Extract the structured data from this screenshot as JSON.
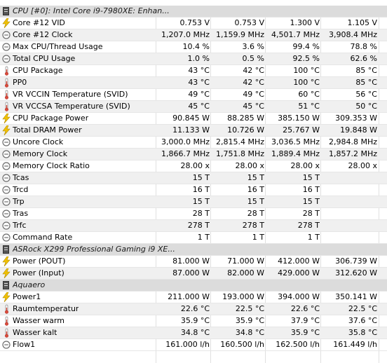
{
  "rows": [
    {
      "kind": "group",
      "label": "CPU [#0]: Intel Core i9-7980XE: Enhan..."
    },
    {
      "kind": "volt",
      "label": "Core #12 VID",
      "cur": "0.753 V",
      "min": "0.753 V",
      "max": "1.300 V",
      "avg": "1.105 V"
    },
    {
      "kind": "clock",
      "label": "Core #12 Clock",
      "cur": "1,207.0 MHz",
      "min": "1,159.9 MHz",
      "max": "4,501.7 MHz",
      "avg": "3,908.4 MHz"
    },
    {
      "kind": "clock",
      "label": "Max CPU/Thread Usage",
      "cur": "10.4 %",
      "min": "3.6 %",
      "max": "99.4 %",
      "avg": "78.8 %"
    },
    {
      "kind": "clock",
      "label": "Total CPU Usage",
      "cur": "1.0 %",
      "min": "0.5 %",
      "max": "92.5 %",
      "avg": "62.6 %"
    },
    {
      "kind": "temp",
      "label": "CPU Package",
      "cur": "43 °C",
      "min": "42 °C",
      "max": "100 °C",
      "avg": "85 °C"
    },
    {
      "kind": "temp",
      "label": "PP0",
      "cur": "43 °C",
      "min": "42 °C",
      "max": "100 °C",
      "avg": "85 °C"
    },
    {
      "kind": "temp",
      "label": "VR VCCIN Temperature (SVID)",
      "cur": "49 °C",
      "min": "49 °C",
      "max": "60 °C",
      "avg": "56 °C"
    },
    {
      "kind": "temp",
      "label": "VR VCCSA Temperature (SVID)",
      "cur": "45 °C",
      "min": "45 °C",
      "max": "51 °C",
      "avg": "50 °C"
    },
    {
      "kind": "volt",
      "label": "CPU Package Power",
      "cur": "90.845 W",
      "min": "88.285 W",
      "max": "385.150 W",
      "avg": "309.353 W"
    },
    {
      "kind": "volt",
      "label": "Total DRAM Power",
      "cur": "11.133 W",
      "min": "10.726 W",
      "max": "25.767 W",
      "avg": "19.848 W"
    },
    {
      "kind": "clock",
      "label": "Uncore Clock",
      "cur": "3,000.0 MHz",
      "min": "2,815.4 MHz",
      "max": "3,036.5 MHz",
      "avg": "2,984.8 MHz"
    },
    {
      "kind": "clock",
      "label": "Memory Clock",
      "cur": "1,866.7 MHz",
      "min": "1,751.8 MHz",
      "max": "1,889.4 MHz",
      "avg": "1,857.2 MHz"
    },
    {
      "kind": "clock",
      "label": "Memory Clock Ratio",
      "cur": "28.00 x",
      "min": "28.00 x",
      "max": "28.00 x",
      "avg": "28.00 x"
    },
    {
      "kind": "clock",
      "label": "Tcas",
      "cur": "15 T",
      "min": "15 T",
      "max": "15 T",
      "avg": ""
    },
    {
      "kind": "clock",
      "label": "Trcd",
      "cur": "16 T",
      "min": "16 T",
      "max": "16 T",
      "avg": ""
    },
    {
      "kind": "clock",
      "label": "Trp",
      "cur": "15 T",
      "min": "15 T",
      "max": "15 T",
      "avg": ""
    },
    {
      "kind": "clock",
      "label": "Tras",
      "cur": "28 T",
      "min": "28 T",
      "max": "28 T",
      "avg": ""
    },
    {
      "kind": "clock",
      "label": "Trfc",
      "cur": "278 T",
      "min": "278 T",
      "max": "278 T",
      "avg": ""
    },
    {
      "kind": "clock",
      "label": "Command Rate",
      "cur": "1 T",
      "min": "1 T",
      "max": "1 T",
      "avg": ""
    },
    {
      "kind": "group",
      "label": "ASRock X299 Professional Gaming i9 XE..."
    },
    {
      "kind": "volt",
      "label": "Power (POUT)",
      "cur": "81.000 W",
      "min": "71.000 W",
      "max": "412.000 W",
      "avg": "306.739 W"
    },
    {
      "kind": "volt",
      "label": "Power (Input)",
      "cur": "87.000 W",
      "min": "82.000 W",
      "max": "429.000 W",
      "avg": "312.620 W"
    },
    {
      "kind": "group",
      "label": "Aquaero"
    },
    {
      "kind": "volt",
      "label": "Power1",
      "cur": "211.000 W",
      "min": "193.000 W",
      "max": "394.000 W",
      "avg": "350.141 W"
    },
    {
      "kind": "temp",
      "label": "Raumtemperatur",
      "cur": "22.6 °C",
      "min": "22.5 °C",
      "max": "22.6 °C",
      "avg": "22.5 °C"
    },
    {
      "kind": "temp",
      "label": "Wasser warm",
      "cur": "35.9 °C",
      "min": "35.9 °C",
      "max": "37.9 °C",
      "avg": "37.6 °C"
    },
    {
      "kind": "temp",
      "label": "Wasser kalt",
      "cur": "34.8 °C",
      "min": "34.8 °C",
      "max": "35.9 °C",
      "avg": "35.8 °C"
    },
    {
      "kind": "clock",
      "label": "Flow1",
      "cur": "161.000 l/h",
      "min": "160.500 l/h",
      "max": "162.500 l/h",
      "avg": "161.449 l/h"
    }
  ],
  "colors": {
    "bolt": "#f2c200",
    "thermo": "#d94b3a",
    "gauge": "#6d6d6d"
  }
}
